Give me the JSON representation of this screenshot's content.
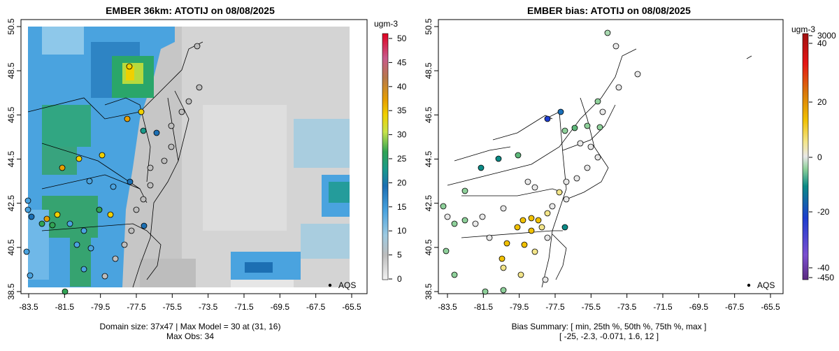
{
  "left_panel": {
    "title": "EMBER 36km: ATOTIJ on 08/08/2025",
    "x_ticks": [
      "-83.5",
      "-81.5",
      "-79.5",
      "-77.5",
      "-75.5",
      "-73.5",
      "-71.5",
      "-69.5",
      "-67.5",
      "-65.5"
    ],
    "y_ticks": [
      "38.5",
      "40.5",
      "42.5",
      "44.5",
      "46.5",
      "48.5",
      "50.5"
    ],
    "legend_label": "AQS",
    "colorbar": {
      "units": "ugm-3",
      "ticks": [
        "0",
        "5",
        "10",
        "15",
        "20",
        "25",
        "30",
        "35",
        "40",
        "45",
        "50"
      ]
    },
    "caption_line1": "Domain size: 37x47 | Max Model = 30 at (31, 16)",
    "caption_line2": "Max Obs: 34"
  },
  "right_panel": {
    "title": "EMBER bias: ATOTIJ on 08/08/2025",
    "x_ticks": [
      "-83.5",
      "-81.5",
      "-79.5",
      "-77.5",
      "-75.5",
      "-73.5",
      "-71.5",
      "-69.5",
      "-67.5",
      "-65.5"
    ],
    "y_ticks": [
      "38.5",
      "40.5",
      "42.5",
      "44.5",
      "46.5",
      "48.5",
      "50.5"
    ],
    "legend_label": "AQS",
    "colorbar": {
      "units": "ugm-3",
      "ticks": [
        "3000",
        "40",
        "20",
        "0",
        "-20",
        "-40",
        "-450"
      ]
    },
    "caption_line1": "Bias Summary: [ min, 25th %, 50th %, 75th %, max ]",
    "caption_line2": "[ -25,   -2.3,   -0.071,   1.6,   12 ]"
  },
  "colors": {
    "gray_scale": "#c8c8c8",
    "blue": "#4aa3df",
    "green": "#31a354",
    "yellow": "#f0e442",
    "orange": "#e69f00",
    "red": "#e00000"
  }
}
